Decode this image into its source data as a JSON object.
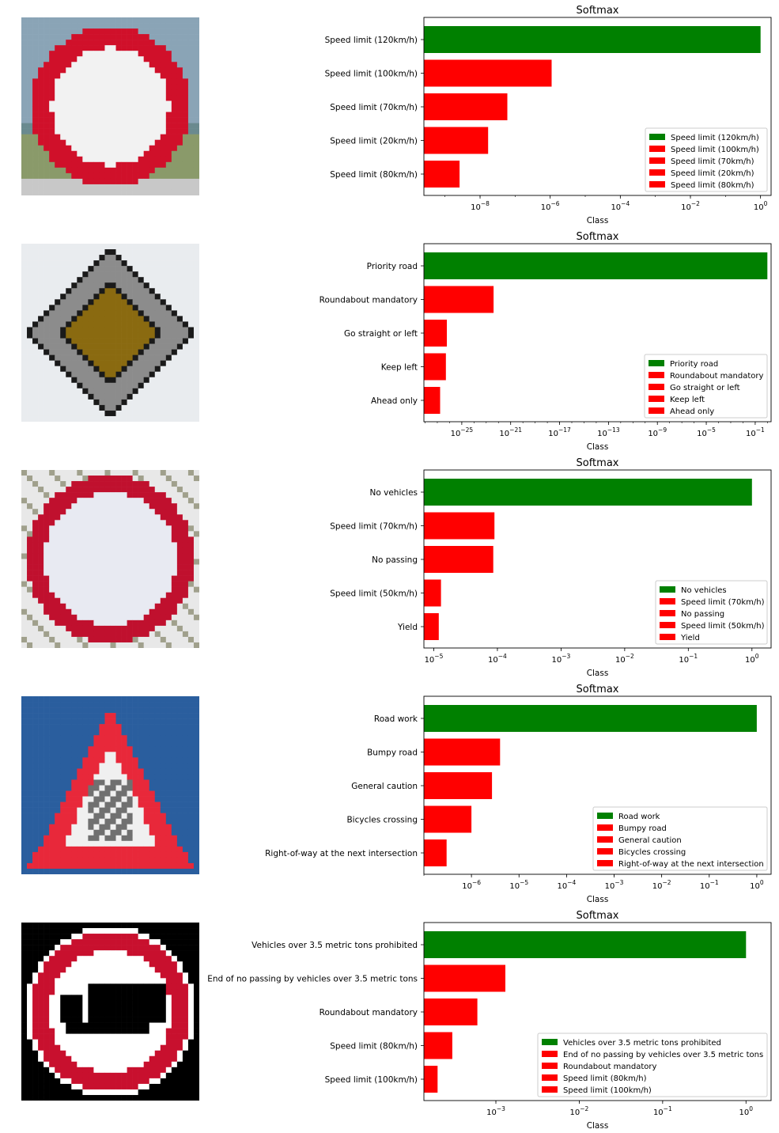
{
  "chart_data": [
    {
      "type": "bar",
      "orientation": "horizontal",
      "xscale": "log",
      "title": "Softmax",
      "xlabel": "Class",
      "ylabel": "",
      "xlim": [
        2.5e-10,
        2.0
      ],
      "xticks": [
        {
          "v": 1e-08,
          "b": "10",
          "e": "−8"
        },
        {
          "v": 1e-06,
          "b": "10",
          "e": "−6"
        },
        {
          "v": 0.0001,
          "b": "10",
          "e": "−4"
        },
        {
          "v": 0.01,
          "b": "10",
          "e": "−2"
        },
        {
          "v": 1,
          "b": "10",
          "e": "0"
        }
      ],
      "categories": [
        "Speed limit (120km/h)",
        "Speed limit (100km/h)",
        "Speed limit (70km/h)",
        "Speed limit (20km/h)",
        "Speed limit (80km/h)"
      ],
      "values": [
        1.0,
        1.1e-06,
        6e-08,
        1.7e-08,
        2.6e-09
      ],
      "colors": [
        "#008000",
        "#ff0000",
        "#ff0000",
        "#ff0000",
        "#ff0000"
      ],
      "legend": "lower right",
      "image": "speed-limit-120"
    },
    {
      "type": "bar",
      "orientation": "horizontal",
      "xscale": "log",
      "title": "Softmax",
      "xlabel": "Class",
      "ylabel": "",
      "xlim": [
        8e-29,
        2.0
      ],
      "xticks": [
        {
          "v": 1e-25,
          "b": "10",
          "e": "−25"
        },
        {
          "v": 1e-21,
          "b": "10",
          "e": "−21"
        },
        {
          "v": 1e-17,
          "b": "10",
          "e": "−17"
        },
        {
          "v": 1e-13,
          "b": "10",
          "e": "−13"
        },
        {
          "v": 1e-09,
          "b": "10",
          "e": "−9"
        },
        {
          "v": 1e-05,
          "b": "10",
          "e": "−5"
        },
        {
          "v": 0.1,
          "b": "10",
          "e": "−1"
        }
      ],
      "categories": [
        "Priority road",
        "Roundabout mandatory",
        "Go straight or left",
        "Keep left",
        "Ahead only"
      ],
      "values": [
        1.0,
        4e-23,
        6e-27,
        5e-27,
        1.7e-27
      ],
      "colors": [
        "#008000",
        "#ff0000",
        "#ff0000",
        "#ff0000",
        "#ff0000"
      ],
      "legend": "lower right",
      "image": "priority-road"
    },
    {
      "type": "bar",
      "orientation": "horizontal",
      "xscale": "log",
      "title": "Softmax",
      "xlabel": "Class",
      "ylabel": "",
      "xlim": [
        7e-06,
        2.0
      ],
      "xticks": [
        {
          "v": 1e-05,
          "b": "10",
          "e": "−5"
        },
        {
          "v": 0.0001,
          "b": "10",
          "e": "−4"
        },
        {
          "v": 0.001,
          "b": "10",
          "e": "−3"
        },
        {
          "v": 0.01,
          "b": "10",
          "e": "−2"
        },
        {
          "v": 0.1,
          "b": "10",
          "e": "−1"
        },
        {
          "v": 1,
          "b": "10",
          "e": "0"
        }
      ],
      "categories": [
        "No vehicles",
        "Speed limit (70km/h)",
        "No passing",
        "Speed limit (50km/h)",
        "Yield"
      ],
      "values": [
        1.0,
        9e-05,
        8.6e-05,
        1.3e-05,
        1.2e-05
      ],
      "colors": [
        "#008000",
        "#ff0000",
        "#ff0000",
        "#ff0000",
        "#ff0000"
      ],
      "legend": "lower right",
      "image": "no-vehicles"
    },
    {
      "type": "bar",
      "orientation": "horizontal",
      "xscale": "log",
      "title": "Softmax",
      "xlabel": "Class",
      "ylabel": "",
      "xlim": [
        1e-07,
        2.0
      ],
      "xticks": [
        {
          "v": 1e-06,
          "b": "10",
          "e": "−6"
        },
        {
          "v": 1e-05,
          "b": "10",
          "e": "−5"
        },
        {
          "v": 0.0001,
          "b": "10",
          "e": "−4"
        },
        {
          "v": 0.001,
          "b": "10",
          "e": "−3"
        },
        {
          "v": 0.01,
          "b": "10",
          "e": "−2"
        },
        {
          "v": 0.1,
          "b": "10",
          "e": "−1"
        },
        {
          "v": 1,
          "b": "10",
          "e": "0"
        }
      ],
      "categories": [
        "Road work",
        "Bumpy road",
        "General caution",
        "Bicycles crossing",
        "Right-of-way at the next intersection"
      ],
      "values": [
        1.0,
        4e-06,
        2.7e-06,
        1e-06,
        3e-07
      ],
      "colors": [
        "#008000",
        "#ff0000",
        "#ff0000",
        "#ff0000",
        "#ff0000"
      ],
      "legend": "lower right",
      "image": "road-work"
    },
    {
      "type": "bar",
      "orientation": "horizontal",
      "xscale": "log",
      "title": "Softmax",
      "xlabel": "Class",
      "ylabel": "",
      "xlim": [
        0.000137,
        2.0
      ],
      "xticks": [
        {
          "v": 0.001,
          "b": "10",
          "e": "−3"
        },
        {
          "v": 0.01,
          "b": "10",
          "e": "−2"
        },
        {
          "v": 0.1,
          "b": "10",
          "e": "−1"
        },
        {
          "v": 1,
          "b": "10",
          "e": "0"
        }
      ],
      "categories": [
        "Vehicles over 3.5 metric tons prohibited",
        "End of no passing by vehicles over 3.5 metric tons",
        "Roundabout mandatory",
        "Speed limit (80km/h)",
        "Speed limit (100km/h)"
      ],
      "values": [
        1.0,
        0.0013,
        0.0006,
        0.0003,
        0.0002
      ],
      "colors": [
        "#008000",
        "#ff0000",
        "#ff0000",
        "#ff0000",
        "#ff0000"
      ],
      "legend": "lower right",
      "image": "vehicles-over-3.5t-prohibited"
    }
  ]
}
